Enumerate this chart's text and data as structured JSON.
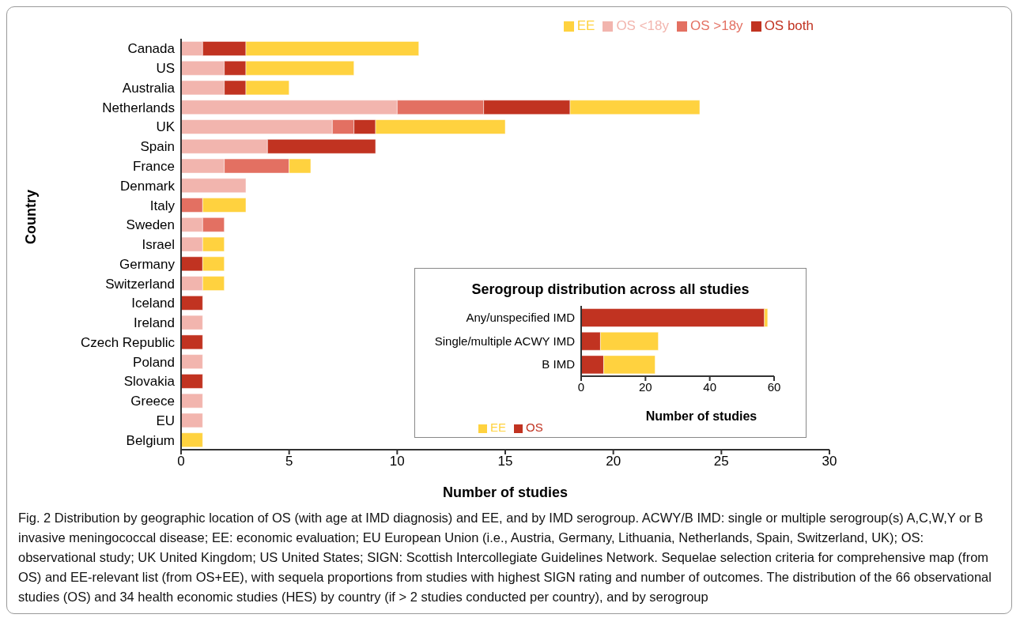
{
  "chart_data": [
    {
      "type": "bar",
      "orientation": "horizontal",
      "stacked": true,
      "xlabel": "Number of studies",
      "ylabel": "Country",
      "categories": [
        "Canada",
        "US",
        "Australia",
        "Netherlands",
        "UK",
        "Spain",
        "France",
        "Denmark",
        "Italy",
        "Sweden",
        "Israel",
        "Germany",
        "Switzerland",
        "Iceland",
        "Ireland",
        "Czech Republic",
        "Poland",
        "Slovakia",
        "Greece",
        "EU",
        "Belgium"
      ],
      "series": [
        {
          "name": "OS <18y",
          "color": "#f2b5ae",
          "values": [
            1,
            2,
            2,
            10,
            7,
            4,
            2,
            3,
            0,
            1,
            1,
            0,
            1,
            0,
            1,
            0,
            1,
            0,
            1,
            1,
            0
          ]
        },
        {
          "name": "OS >18y",
          "color": "#e37062",
          "values": [
            0,
            0,
            0,
            4,
            1,
            0,
            3,
            0,
            1,
            1,
            0,
            0,
            0,
            0,
            0,
            0,
            0,
            0,
            0,
            0,
            0
          ]
        },
        {
          "name": "OS both",
          "color": "#c13321",
          "values": [
            2,
            1,
            1,
            4,
            1,
            5,
            0,
            0,
            0,
            0,
            0,
            1,
            0,
            1,
            0,
            1,
            0,
            1,
            0,
            0,
            0
          ]
        },
        {
          "name": "EE",
          "color": "#ffd23f",
          "values": [
            8,
            5,
            2,
            6,
            6,
            0,
            1,
            0,
            2,
            0,
            1,
            1,
            1,
            0,
            0,
            0,
            0,
            0,
            0,
            0,
            1
          ]
        }
      ],
      "xlim": [
        0,
        30
      ],
      "xticks": [
        0,
        5,
        10,
        15,
        20,
        25,
        30
      ],
      "legend": "top right",
      "annotations": [
        "Fig. 2  Distribution by geographic location of OS (with age at IMD diagnosis) and EE, and by IMD serogroup. ACWY/B IMD: single or multiple serogroup(s) A,C,W,Y or B invasive meningococcal disease; EE: economic evaluation; EU European Union (i.e., Austria, Germany, Lithuania, Netherlands, Spain, Switzerland, UK); OS: observational study; UK United Kingdom; US United States; SIGN: Scottish Intercollegiate Guidelines Network. Sequelae selection criteria for comprehensive map (from OS) and EE-relevant list (from OS+EE), with sequela proportions from studies with highest SIGN rating and number of outcomes. The distribution of the 66 observational studies (OS) and 34 health economic studies (HES) by country (if > 2 studies conducted per country), and by serogroup"
      ]
    },
    {
      "type": "bar",
      "orientation": "horizontal",
      "stacked": true,
      "title": "Serogroup distribution across all studies",
      "xlabel": "Number of studies",
      "categories": [
        "Any/unspecified IMD",
        "Single/multiple ACWY IMD",
        "B IMD"
      ],
      "series": [
        {
          "name": "OS",
          "color": "#c13321",
          "values": [
            57,
            6,
            7
          ]
        },
        {
          "name": "EE",
          "color": "#ffd23f",
          "values": [
            1,
            18,
            16
          ]
        }
      ],
      "xlim": [
        0,
        60
      ],
      "xticks": [
        0,
        20,
        40,
        60
      ],
      "legend": "bottom left"
    }
  ]
}
